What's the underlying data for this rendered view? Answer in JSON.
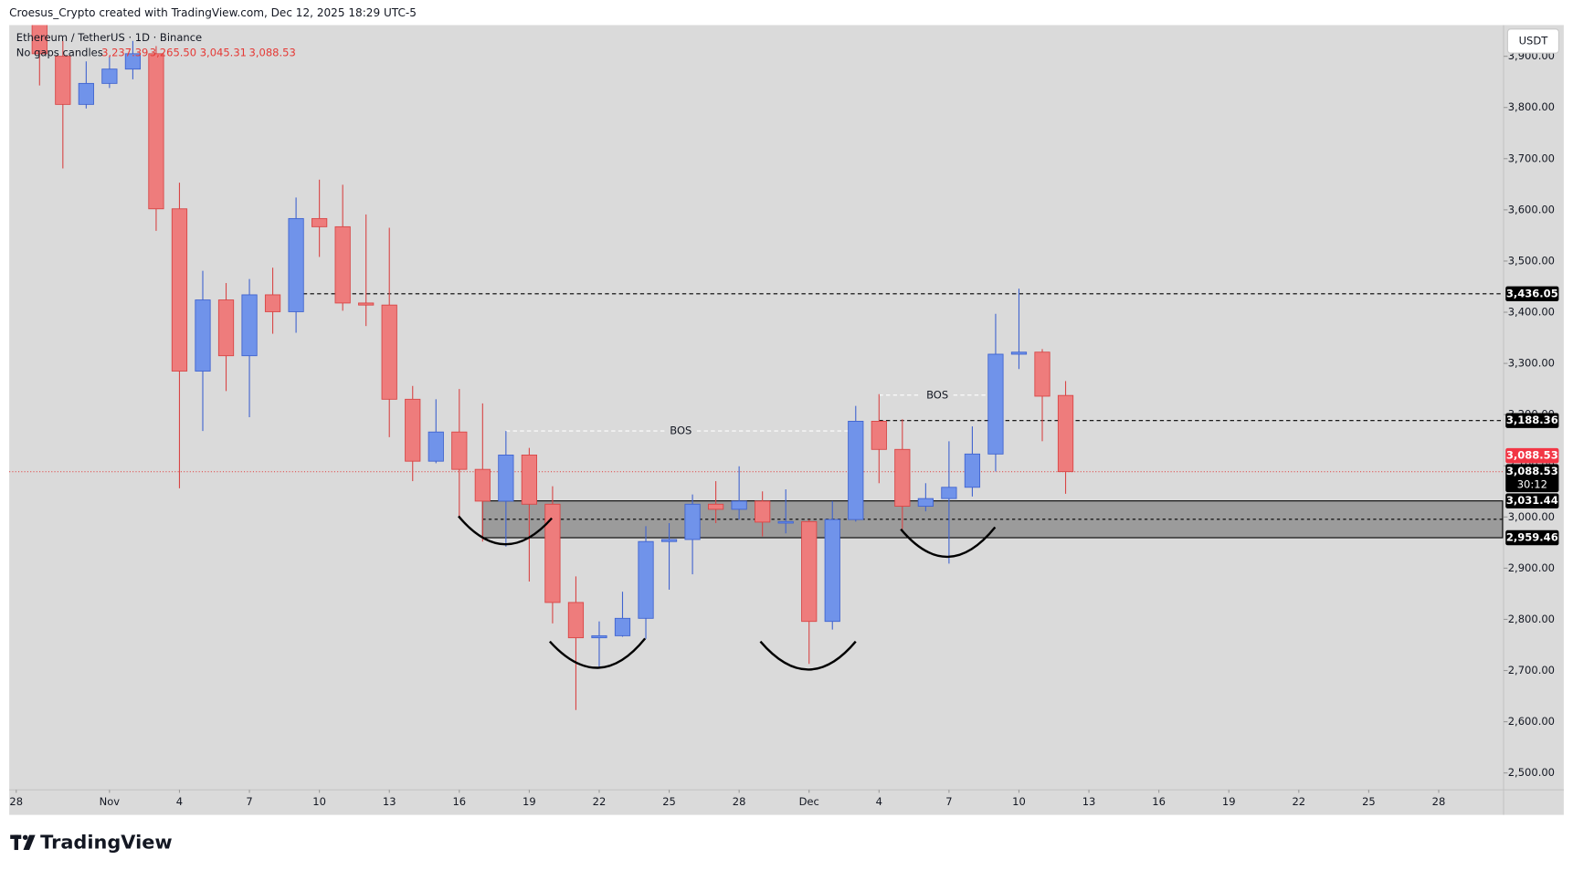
{
  "header": "Croesus_Crypto created with TradingView.com, Dec 12, 2025 18:29 UTC-5",
  "brand": "TradingView",
  "chart_data": {
    "type": "candlestick",
    "title": "Ethereum / TetherUS · 1D · Binance",
    "subtitle": "No gaps candles",
    "legend_ohlc": {
      "values": [
        3237.39,
        3265.5,
        3045.31,
        3088.53
      ],
      "value_labels": [
        "3,237.39",
        "3,265.50",
        "3,045.31",
        "3,088.53"
      ]
    },
    "currency": "USDT",
    "up_color": "#7093ea",
    "down_color": "#ee7c7c",
    "x": [
      "2025-10-29",
      "2025-10-30",
      "2025-10-31",
      "2025-11-01",
      "2025-11-02",
      "2025-11-03",
      "2025-11-04",
      "2025-11-05",
      "2025-11-06",
      "2025-11-07",
      "2025-11-08",
      "2025-11-09",
      "2025-11-10",
      "2025-11-11",
      "2025-11-12",
      "2025-11-13",
      "2025-11-14",
      "2025-11-15",
      "2025-11-16",
      "2025-11-17",
      "2025-11-18",
      "2025-11-19",
      "2025-11-20",
      "2025-11-21",
      "2025-11-22",
      "2025-11-23",
      "2025-11-24",
      "2025-11-25",
      "2025-11-26",
      "2025-11-27",
      "2025-11-28",
      "2025-11-29",
      "2025-11-30",
      "2025-12-01",
      "2025-12-02",
      "2025-12-03",
      "2025-12-04",
      "2025-12-05",
      "2025-12-06",
      "2025-12-07",
      "2025-12-08",
      "2025-12-09",
      "2025-12-10",
      "2025-12-11",
      "2025-12-12"
    ],
    "open": [
      3985,
      3900,
      3806,
      3847,
      3875,
      3905,
      3602,
      3285,
      3424,
      3315,
      3434,
      3401,
      3583,
      3567,
      3418,
      3414,
      3230,
      3109,
      3166,
      3093,
      3031,
      3121,
      3025,
      2833,
      2764,
      2768,
      2802,
      2952,
      2956,
      3025,
      3015,
      3031,
      2990,
      2991,
      2796,
      2995,
      3187,
      3132,
      3021,
      3036,
      3058,
      3123,
      3318,
      3322,
      3237.39
    ],
    "high": [
      4020,
      3930,
      3890,
      3900,
      3930,
      3920,
      3653,
      3481,
      3457,
      3465,
      3487,
      3624,
      3659,
      3649,
      3591,
      3565,
      3256,
      3230,
      3250,
      3222,
      3168,
      3135,
      3060,
      2884,
      2796,
      2854,
      2982,
      2988,
      3044,
      3070,
      3099,
      3050,
      3054,
      2995,
      3031,
      3217,
      3240,
      3191,
      3066,
      3148,
      3177,
      3397,
      3446,
      3328,
      3265.5
    ],
    "low": [
      3843,
      3681,
      3798,
      3838,
      3855,
      3559,
      3056,
      3168,
      3246,
      3195,
      3358,
      3360,
      3508,
      3403,
      3373,
      3156,
      3070,
      3105,
      3001,
      2952,
      2942,
      2874,
      2792,
      2623,
      2708,
      2766,
      2762,
      2858,
      2888,
      2988,
      2995,
      2962,
      2968,
      2713,
      2780,
      2991,
      3066,
      2976,
      3011,
      2909,
      3040,
      3089,
      3289,
      3148,
      3045.31
    ],
    "close": [
      3905,
      3806,
      3847,
      3875,
      3905,
      3602,
      3285,
      3424,
      3315,
      3434,
      3401,
      3583,
      3567,
      3418,
      3414,
      3230,
      3109,
      3166,
      3093,
      3031,
      3121,
      3025,
      2833,
      2764,
      2768,
      2802,
      2952,
      2956,
      3025,
      3015,
      3031,
      2990,
      2991,
      2796,
      2995,
      3187,
      3132,
      3021,
      3036,
      3058,
      3123,
      3318,
      3322,
      3236,
      3088.53
    ],
    "xlim": [
      "2025-10-27T16:48",
      "2025-12-30T17:45"
    ],
    "xticks": [
      {
        "value": "2025-10-28",
        "label": "28"
      },
      {
        "value": "2025-11-01",
        "label": "Nov"
      },
      {
        "value": "2025-11-04",
        "label": "4"
      },
      {
        "value": "2025-11-07",
        "label": "7"
      },
      {
        "value": "2025-11-10",
        "label": "10"
      },
      {
        "value": "2025-11-13",
        "label": "13"
      },
      {
        "value": "2025-11-16",
        "label": "16"
      },
      {
        "value": "2025-11-19",
        "label": "19"
      },
      {
        "value": "2025-11-22",
        "label": "22"
      },
      {
        "value": "2025-11-25",
        "label": "25"
      },
      {
        "value": "2025-11-28",
        "label": "28"
      },
      {
        "value": "2025-12-01",
        "label": "Dec"
      },
      {
        "value": "2025-12-04",
        "label": "4"
      },
      {
        "value": "2025-12-07",
        "label": "7"
      },
      {
        "value": "2025-12-10",
        "label": "10"
      },
      {
        "value": "2025-12-13",
        "label": "13"
      },
      {
        "value": "2025-12-16",
        "label": "16"
      },
      {
        "value": "2025-12-19",
        "label": "19"
      },
      {
        "value": "2025-12-22",
        "label": "22"
      },
      {
        "value": "2025-12-25",
        "label": "25"
      },
      {
        "value": "2025-12-28",
        "label": "28"
      }
    ],
    "ylim": [
      2467,
      3961
    ],
    "yticks": [
      {
        "value": 2500,
        "label": "2,500.00"
      },
      {
        "value": 2600,
        "label": "2,600.00"
      },
      {
        "value": 2700,
        "label": "2,700.00"
      },
      {
        "value": 2800,
        "label": "2,800.00"
      },
      {
        "value": 2900,
        "label": "2,900.00"
      },
      {
        "value": 3000,
        "label": "3,000.00"
      },
      {
        "value": 3100,
        "label": "3,100.00"
      },
      {
        "value": 3200,
        "label": "3,200.00"
      },
      {
        "value": 3300,
        "label": "3,300.00"
      },
      {
        "value": 3400,
        "label": "3,400.00"
      },
      {
        "value": 3500,
        "label": "3,500.00"
      },
      {
        "value": 3600,
        "label": "3,600.00"
      },
      {
        "value": 3700,
        "label": "3,700.00"
      },
      {
        "value": 3800,
        "label": "3,800.00"
      },
      {
        "value": 3900,
        "label": "3,900.00"
      }
    ],
    "price_lines": [
      {
        "value": 3436.05,
        "label": "3,436.05",
        "from": "2025-11-09"
      },
      {
        "value": 3188.36,
        "label": "3,188.36",
        "from": "2025-12-04"
      }
    ],
    "zone": {
      "from": "2025-11-17",
      "top": {
        "value": 3031.44,
        "label": "3,031.44"
      },
      "bottom": {
        "value": 2959.46,
        "label": "2,959.46"
      }
    },
    "last_price": {
      "value": 3088.53,
      "label": "3,088.53"
    },
    "countdown": "30:12",
    "annotations": [
      {
        "text": "BOS",
        "value": 3168,
        "from": "2025-11-18",
        "to": "2025-12-03"
      },
      {
        "text": "BOS",
        "value": 3238,
        "from": "2025-12-04",
        "to": "2025-12-09"
      }
    ]
  }
}
